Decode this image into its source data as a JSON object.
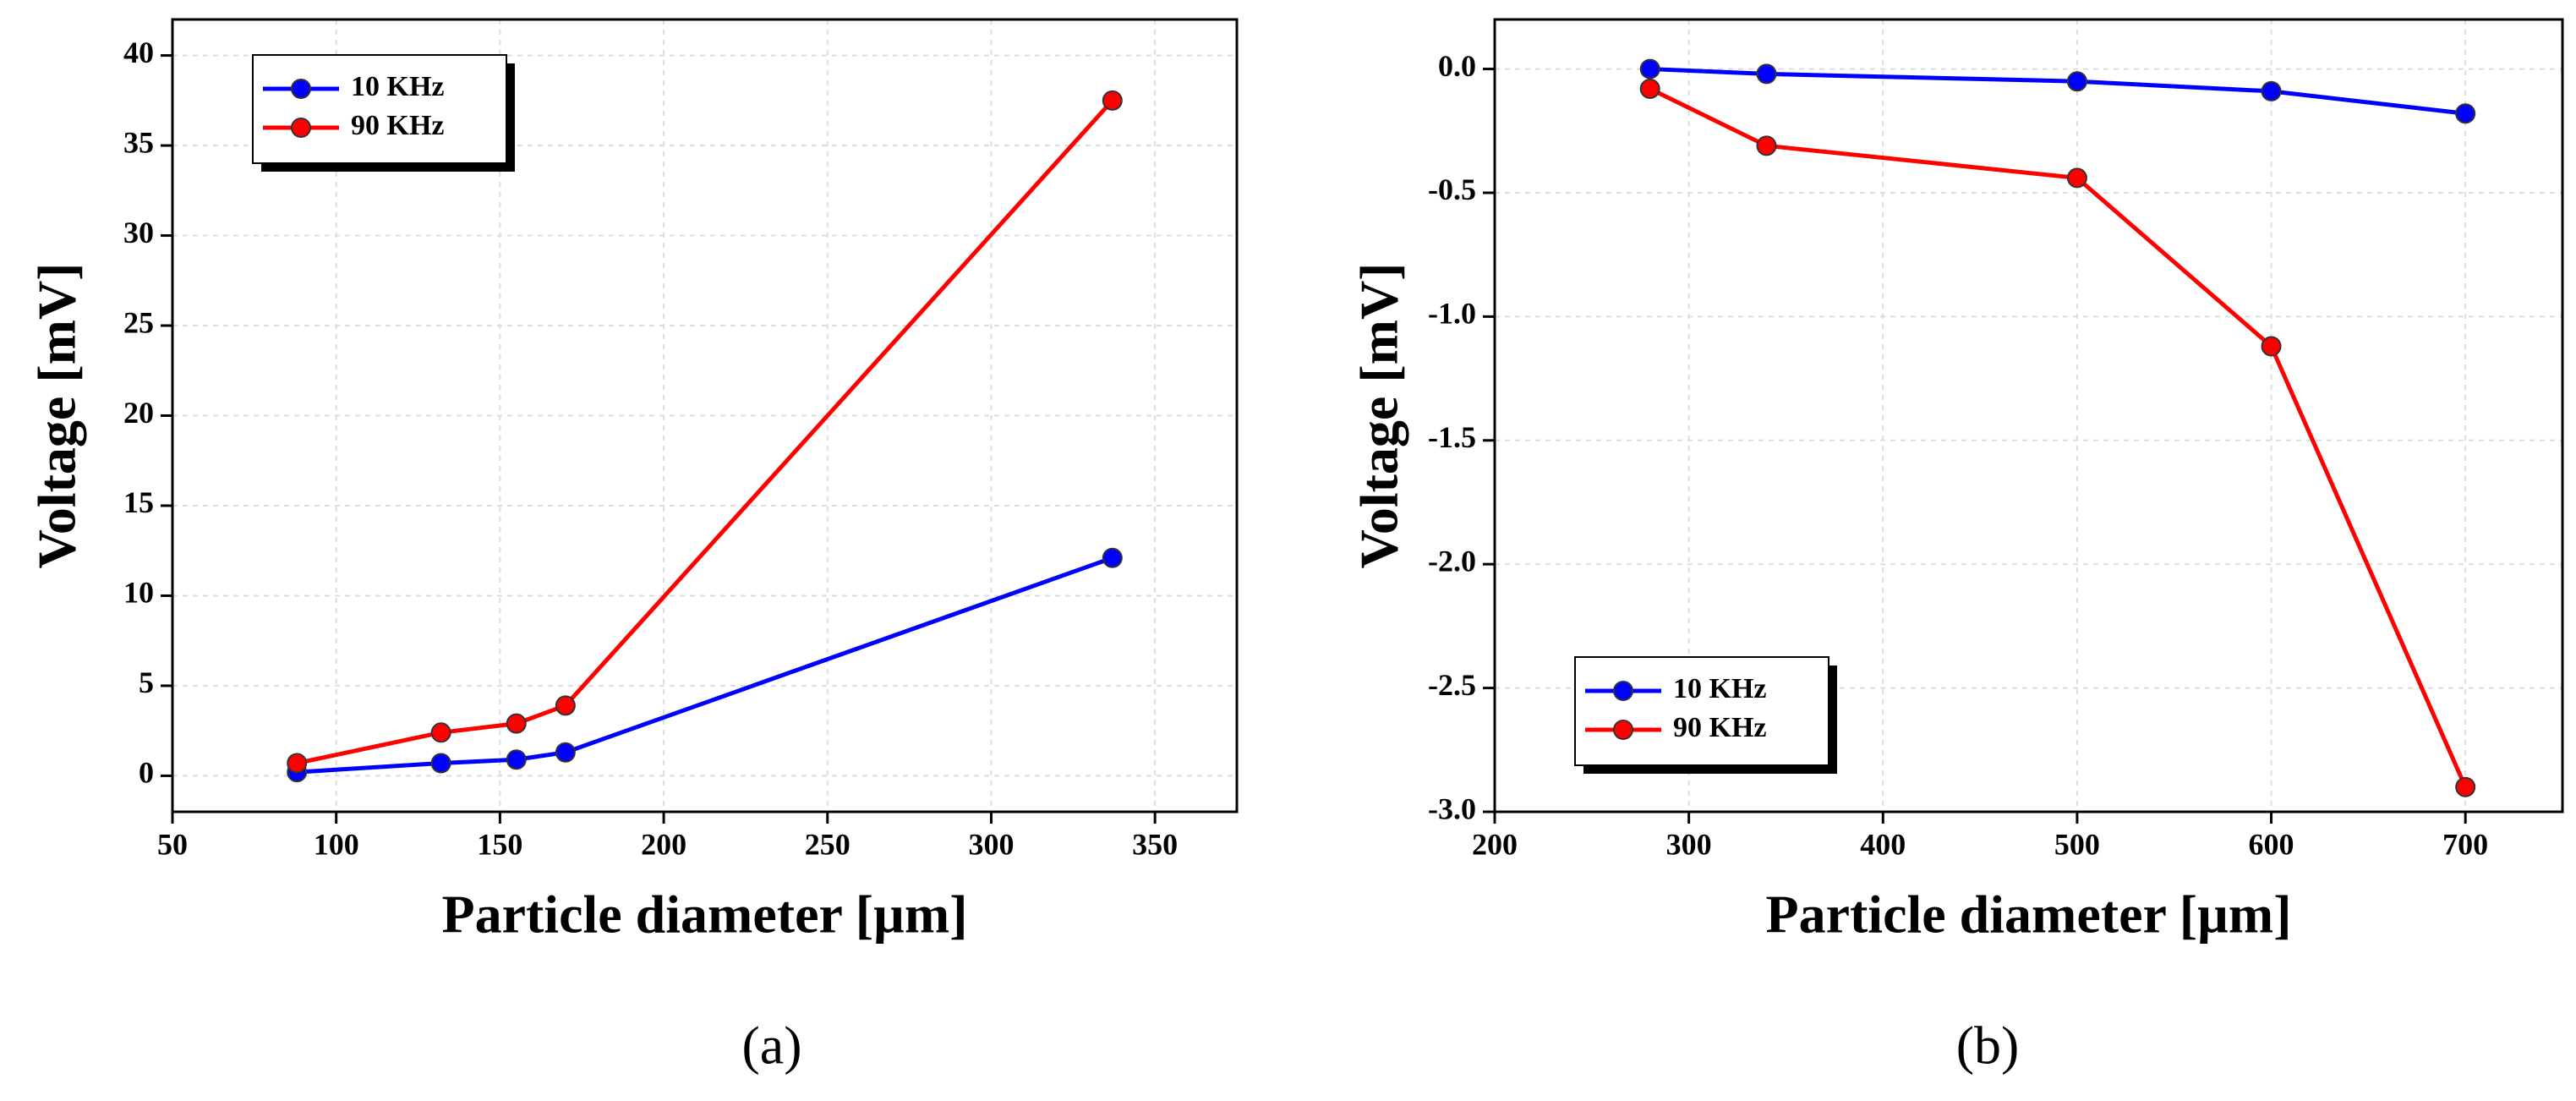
{
  "chart_data": [
    {
      "type": "line",
      "caption": "(a)",
      "x_label": "Particle diameter [µm]",
      "y_label": "Voltage [mV]",
      "xlim": [
        50,
        375
      ],
      "ylim": [
        -2,
        42
      ],
      "xticks": [
        50,
        100,
        150,
        200,
        250,
        300,
        350
      ],
      "yticks": [
        0,
        5,
        10,
        15,
        20,
        25,
        30,
        35,
        40
      ],
      "grid": true,
      "legend": "upper-left",
      "x": [
        88,
        132,
        155,
        170,
        337
      ],
      "series": [
        {
          "name": "10 KHz",
          "color": "#0000ff",
          "values": [
            0.2,
            0.7,
            0.9,
            1.3,
            12.1
          ]
        },
        {
          "name": "90 KHz",
          "color": "#ff0000",
          "values": [
            0.7,
            2.4,
            2.9,
            3.9,
            37.5
          ]
        }
      ]
    },
    {
      "type": "line",
      "caption": "(b)",
      "x_label": "Particle diameter [µm]",
      "y_label": "Voltage [mV]",
      "xlim": [
        200,
        750
      ],
      "ylim": [
        -3.0,
        0.2
      ],
      "xticks": [
        200,
        300,
        400,
        500,
        600,
        700
      ],
      "yticks": [
        {
          "value": 0,
          "label": "0.0"
        },
        -0.5,
        {
          "value": -1,
          "label": "-1.0"
        },
        -1.5,
        {
          "value": -2,
          "label": "-2.0"
        },
        -2.5,
        {
          "value": -3,
          "label": "-3.0"
        }
      ],
      "grid": true,
      "legend": "lower-left",
      "x": [
        280,
        340,
        500,
        600,
        700
      ],
      "series": [
        {
          "name": "10 KHz",
          "color": "#0000ff",
          "values": [
            0,
            -0.02,
            -0.05,
            -0.09,
            -0.18
          ]
        },
        {
          "name": "90 KHz",
          "color": "#ff0000",
          "values": [
            -0.08,
            -0.31,
            -0.44,
            -1.12,
            -2.9
          ]
        }
      ]
    }
  ]
}
